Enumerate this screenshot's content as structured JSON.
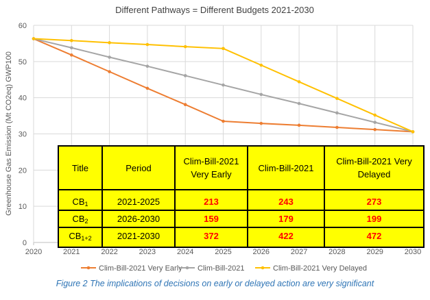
{
  "chart_data": {
    "type": "line",
    "title": "Different Pathways = Different Budgets 2021-2030",
    "ylabel": "Greenhouse Gas Emission (Mt CO2eq) GWP100",
    "xlabel": "",
    "x": [
      2020,
      2021,
      2022,
      2023,
      2024,
      2025,
      2026,
      2027,
      2028,
      2029,
      2030
    ],
    "xlim": [
      2020,
      2030
    ],
    "ylim": [
      0,
      60
    ],
    "yticks": [
      0,
      10,
      20,
      30,
      40,
      50,
      60
    ],
    "grid": true,
    "legend_position": "bottom",
    "series": [
      {
        "name": "Clim-Bill-2021 Very Early",
        "color": "#ed7d31",
        "values": [
          56.3,
          51.8,
          47.2,
          42.6,
          38.1,
          33.5,
          32.9,
          32.4,
          31.8,
          31.2,
          30.6
        ]
      },
      {
        "name": "Clim-Bill-2021",
        "color": "#a5a5a5",
        "values": [
          56.3,
          53.8,
          51.2,
          48.7,
          46.1,
          43.5,
          40.9,
          38.4,
          35.8,
          33.2,
          30.6
        ]
      },
      {
        "name": "Clim-Bill-2021 Very Delayed",
        "color": "#ffc000",
        "values": [
          56.3,
          55.8,
          55.2,
          54.7,
          54.1,
          53.6,
          49.0,
          44.4,
          39.8,
          35.2,
          30.6
        ]
      }
    ]
  },
  "table": {
    "headers": [
      "Title",
      "Period",
      "Clim-Bill-2021 Very Early",
      "Clim-Bill-2021",
      "Clim-Bill-2021 Very Delayed"
    ],
    "rows": [
      {
        "title_main": "CB",
        "title_sub": "1",
        "period": "2021-2025",
        "values": [
          "213",
          "243",
          "273"
        ]
      },
      {
        "title_main": "CB",
        "title_sub": "2",
        "period": "2026-2030",
        "values": [
          "159",
          "179",
          "199"
        ]
      },
      {
        "title_main": "CB",
        "title_sub": "1+2",
        "period": "2021-2030",
        "values": [
          "372",
          "422",
          "472"
        ]
      }
    ]
  },
  "caption": "Figure 2 The implications of decisions on early or delayed action are very significant"
}
